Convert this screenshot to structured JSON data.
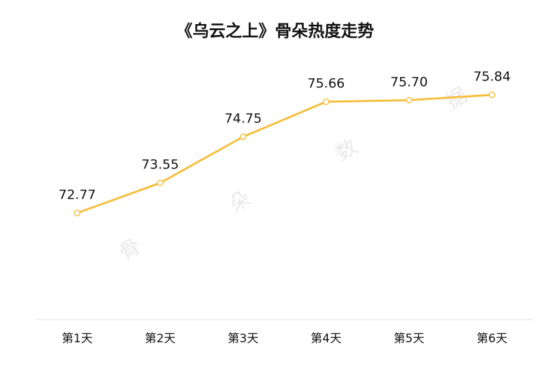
{
  "chart_data": {
    "type": "line",
    "title": "《乌云之上》骨朵热度走势",
    "categories": [
      "第1天",
      "第2天",
      "第3天",
      "第4天",
      "第5天",
      "第6天"
    ],
    "series": [
      {
        "color": "#f4bf3e",
        "values": [
          72.77,
          73.55,
          74.75,
          75.66,
          75.7,
          75.84
        ],
        "value_labels": [
          "72.77",
          "73.55",
          "74.75",
          "75.66",
          "75.70",
          "75.84"
        ]
      }
    ],
    "ylim": [
      70,
      78
    ],
    "watermark": [
      "骨",
      "朵",
      "数",
      "据"
    ]
  }
}
